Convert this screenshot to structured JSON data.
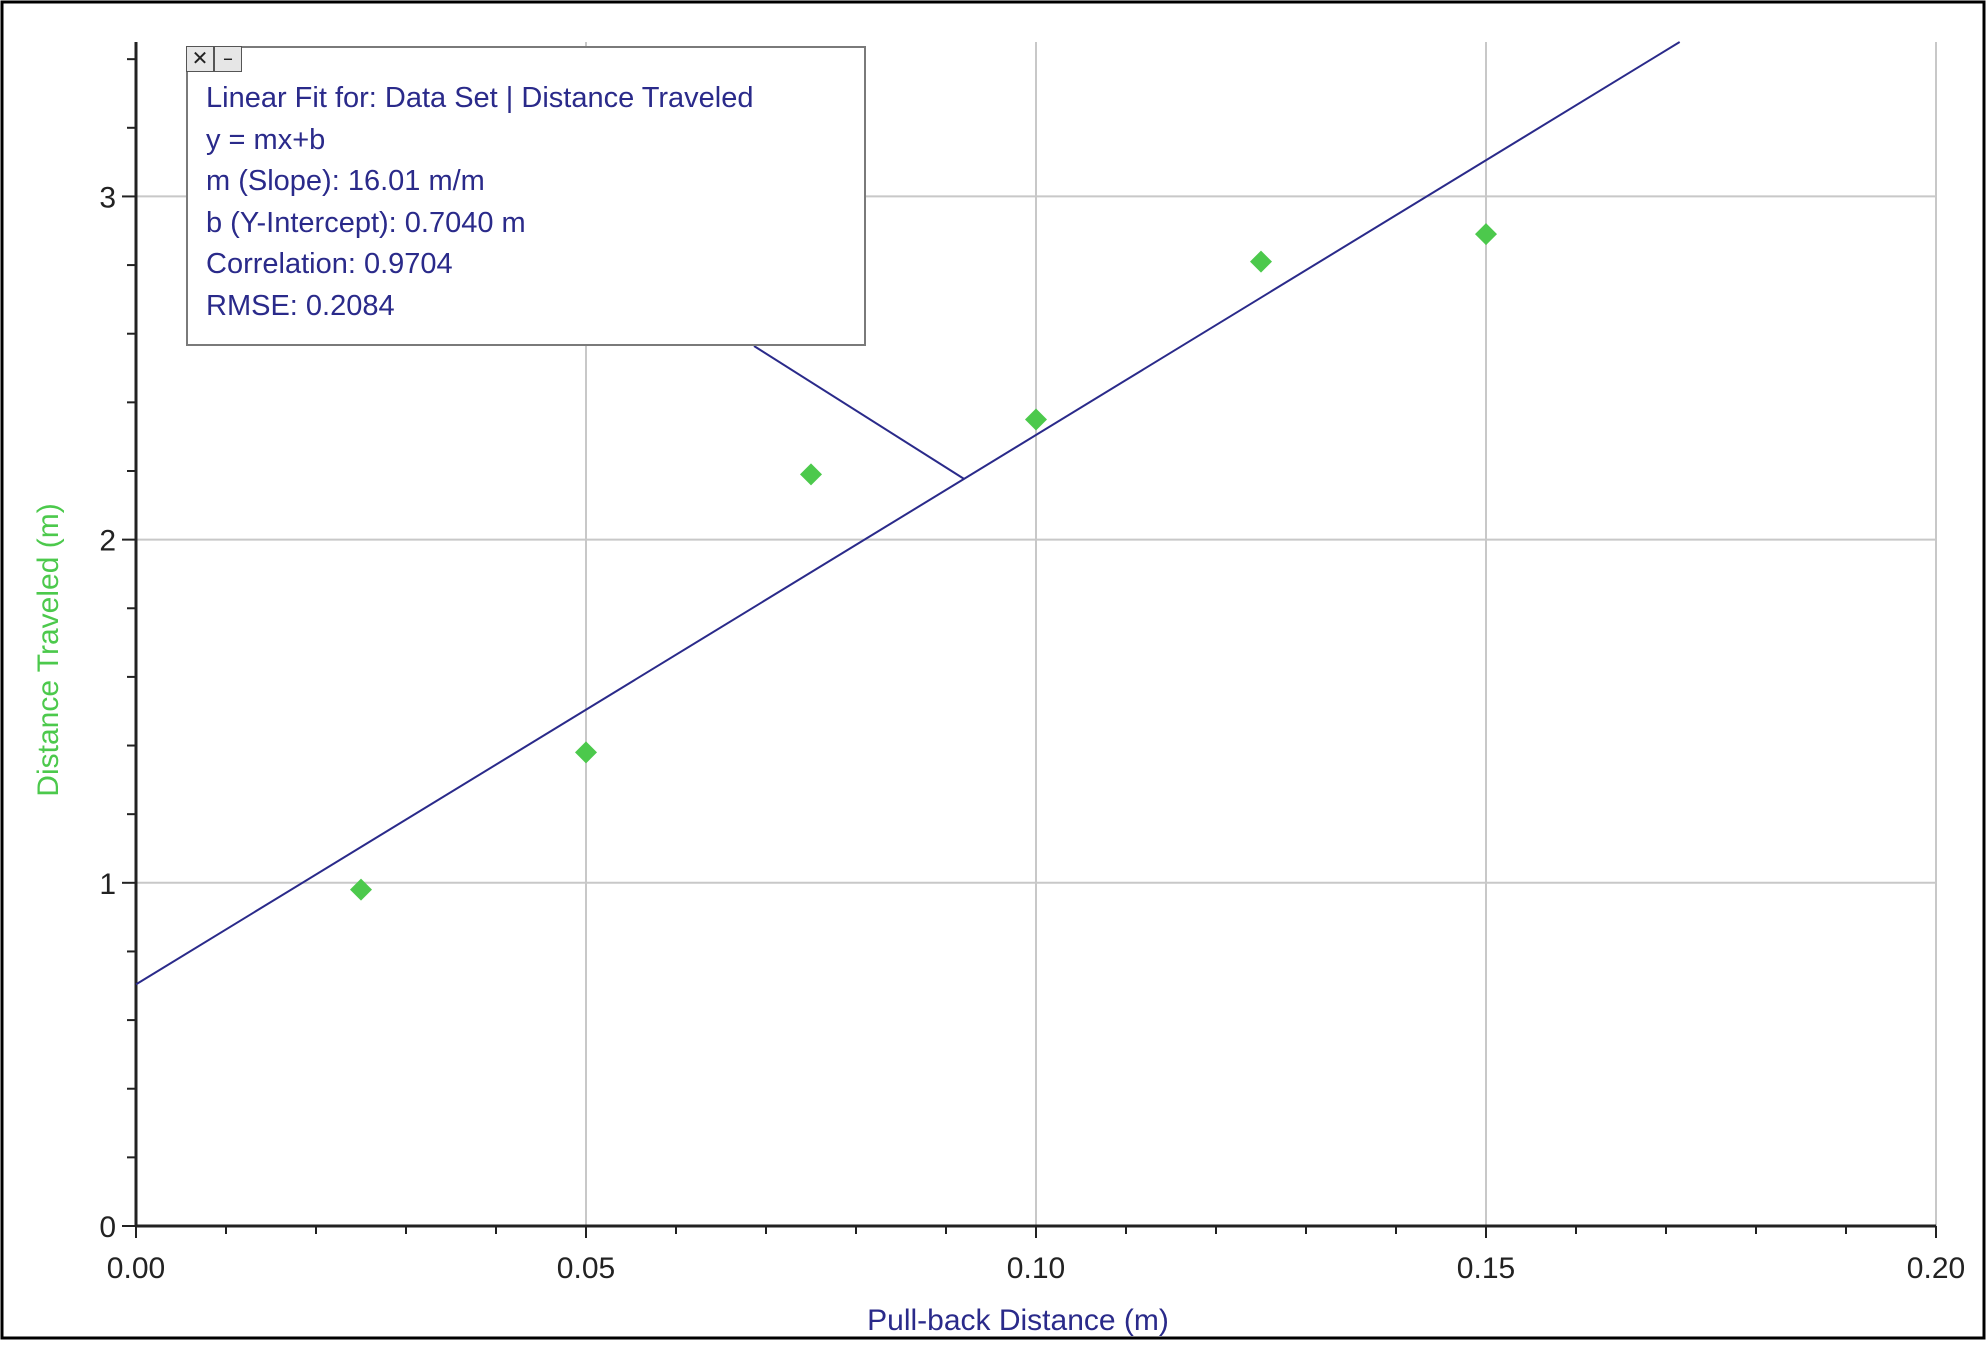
{
  "chart_data": {
    "type": "scatter",
    "xlabel": "Pull-back Distance (m)",
    "ylabel": "Distance Traveled (m)",
    "xlim": [
      0,
      0.2
    ],
    "ylim": [
      0,
      3.5
    ],
    "x_ticks": [
      "0.00",
      "0.05",
      "0.10",
      "0.15",
      "0.20"
    ],
    "y_ticks": [
      "0",
      "1",
      "2",
      "3"
    ],
    "grid": true,
    "series": [
      {
        "x": [
          0.025,
          0.05,
          0.075,
          0.1,
          0.125,
          0.15
        ],
        "y": [
          0.98,
          1.38,
          2.19,
          2.35,
          2.81,
          2.89
        ],
        "color": "#4cc94c",
        "marker": "diamond"
      }
    ],
    "fit_line": {
      "slope": 16.01,
      "intercept": 0.704,
      "color": "#2a2a8a"
    },
    "axis_label_colors": {
      "x": "#2a2a8a",
      "y": "#4cc94c"
    },
    "annotation": {
      "lines": [
        "Linear Fit for:  Data Set | Distance Traveled",
        "y = mx+b",
        "m (Slope): 16.01 m/m",
        "b (Y-Intercept): 0.7040 m",
        "Correlation: 0.9704",
        "RMSE: 0.2084"
      ],
      "leader_target_x": 0.092
    }
  },
  "fit_box": {
    "close_icon": "close-icon",
    "minimize_icon": "minimize-icon"
  }
}
